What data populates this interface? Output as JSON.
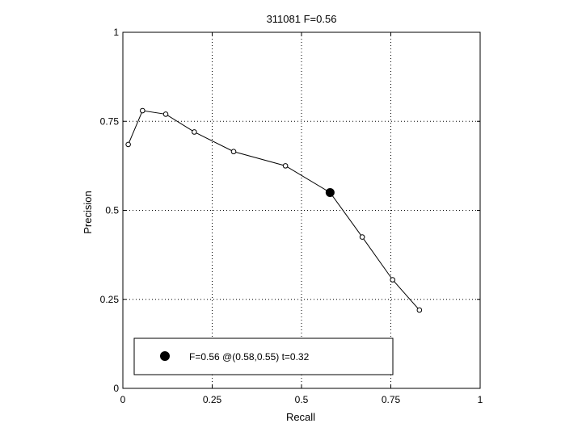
{
  "chart_data": {
    "type": "line",
    "title": "311081 F=0.56",
    "xlabel": "Recall",
    "ylabel": "Precision",
    "xlim": [
      0,
      1
    ],
    "ylim": [
      0,
      1
    ],
    "grid": true,
    "x_ticks": [
      0,
      0.25,
      0.5,
      0.75,
      1
    ],
    "x_tick_labels": [
      "0",
      "0.25",
      "0.5",
      "0.75",
      "1"
    ],
    "y_ticks": [
      0,
      0.25,
      0.5,
      0.75,
      1
    ],
    "y_tick_labels": [
      "0",
      "0.25",
      "0.5",
      "0.75",
      "1"
    ],
    "series": [
      {
        "x": [
          0.015,
          0.055,
          0.12,
          0.2,
          0.31,
          0.455,
          0.58,
          0.67,
          0.755,
          0.83
        ],
        "y": [
          0.685,
          0.78,
          0.77,
          0.72,
          0.665,
          0.625,
          0.55,
          0.425,
          0.305,
          0.22
        ]
      }
    ],
    "highlight_point": {
      "x": 0.58,
      "y": 0.55
    },
    "legend": {
      "position": "bottom",
      "entries": [
        "F=0.56 @(0.58,0.55) t=0.32"
      ]
    }
  }
}
